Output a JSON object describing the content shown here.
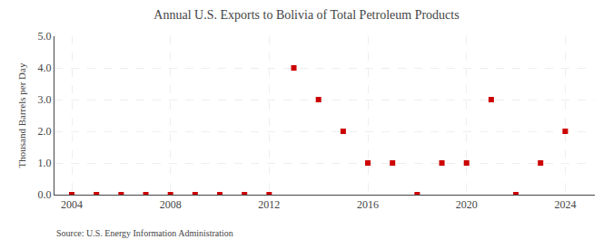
{
  "chart_data": {
    "type": "scatter",
    "title": "Annual U.S. Exports to Bolivia of Total Petroleum Products",
    "ylabel": "Thousand Barrels per Day",
    "source": "Source: U.S. Energy Information Administration",
    "x": [
      2004,
      2005,
      2006,
      2007,
      2008,
      2009,
      2010,
      2011,
      2012,
      2013,
      2014,
      2015,
      2016,
      2017,
      2018,
      2019,
      2020,
      2021,
      2022,
      2023,
      2024
    ],
    "values": [
      0.0,
      0.0,
      0.0,
      0.0,
      0.0,
      0.0,
      0.0,
      0.0,
      0.0,
      4.0,
      3.0,
      2.0,
      1.0,
      1.0,
      0.0,
      1.0,
      1.0,
      3.0,
      0.0,
      1.0,
      2.0
    ],
    "color": "#cc0000",
    "marker": "square",
    "xlim": [
      2003.3,
      2025.2
    ],
    "xticks": [
      2004,
      2008,
      2012,
      2016,
      2020,
      2024
    ],
    "ylim": [
      0.0,
      5.0
    ],
    "yticks": [
      {
        "value": 0.0,
        "label": "0.0"
      },
      {
        "value": 1.0,
        "label": "1.0"
      },
      {
        "value": 2.0,
        "label": "2.0"
      },
      {
        "value": 3.0,
        "label": "3.0"
      },
      {
        "value": 4.0,
        "label": "4.0"
      },
      {
        "value": 5.0,
        "label": "5.0"
      }
    ],
    "grid": true
  }
}
